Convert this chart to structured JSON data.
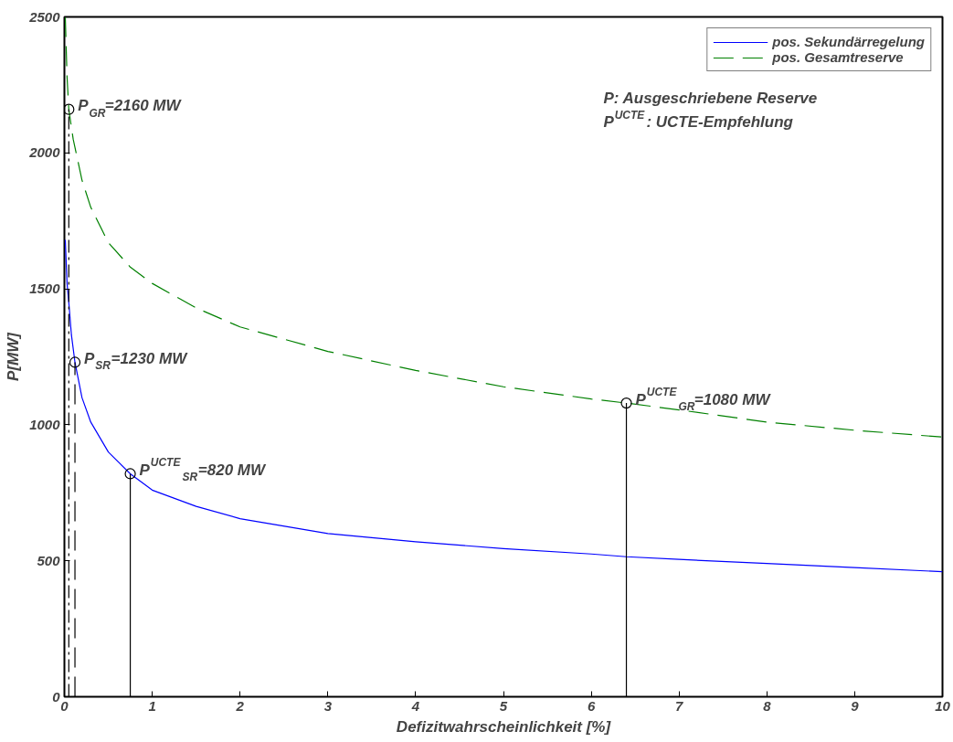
{
  "chart_data": {
    "type": "line",
    "xlabel": "Defizitwahrscheinlichkeit [%]",
    "ylabel": "P[MW]",
    "xlim": [
      0,
      10
    ],
    "ylim": [
      0,
      2500
    ],
    "xticks": [
      0,
      1,
      2,
      3,
      4,
      5,
      6,
      7,
      8,
      9,
      10
    ],
    "yticks": [
      0,
      500,
      1000,
      1500,
      2000,
      2500
    ],
    "grid": false,
    "legend": "top right",
    "series": [
      {
        "name": "pos. Sekundärregelung",
        "color": "#0000ff",
        "line_style": "solid",
        "x": [
          0.01,
          0.03,
          0.05,
          0.08,
          0.12,
          0.2,
          0.3,
          0.5,
          0.75,
          1,
          1.5,
          2,
          3,
          4,
          5,
          6,
          6.4,
          7,
          8,
          9,
          10
        ],
        "values": [
          1680,
          1520,
          1450,
          1330,
          1230,
          1100,
          1010,
          900,
          820,
          760,
          700,
          655,
          600,
          570,
          545,
          525,
          515,
          505,
          490,
          475,
          460
        ]
      },
      {
        "name": "pos. Gesamtreserve",
        "color": "#008000",
        "line_style": "dashed",
        "x": [
          0.01,
          0.03,
          0.05,
          0.1,
          0.2,
          0.3,
          0.5,
          0.75,
          1,
          1.5,
          2,
          3,
          4,
          5,
          6,
          6.4,
          7,
          8,
          9,
          10
        ],
        "values": [
          2500,
          2280,
          2160,
          2050,
          1900,
          1800,
          1670,
          1580,
          1520,
          1430,
          1360,
          1270,
          1200,
          1140,
          1095,
          1080,
          1055,
          1010,
          980,
          955
        ]
      },
      {
        "color": "#000000",
        "line_style": "dashdot",
        "x": [
          0.05,
          0.05
        ],
        "values": [
          0,
          2160
        ]
      },
      {
        "color": "#000000",
        "line_style": "dashed",
        "x": [
          0.12,
          0.12
        ],
        "values": [
          0,
          1230
        ]
      },
      {
        "color": "#000000",
        "line_style": "solid",
        "x": [
          0.75,
          0.75
        ],
        "values": [
          0,
          820
        ]
      },
      {
        "color": "#000000",
        "line_style": "solid",
        "x": [
          6.4,
          6.4
        ],
        "values": [
          0,
          1080
        ]
      },
      {
        "type": "scatter",
        "marker": "circle",
        "color": "#000000",
        "x": [
          0.05,
          0.12,
          0.75,
          6.4
        ],
        "values": [
          2160,
          1230,
          820,
          1080
        ]
      }
    ],
    "annotations": [
      {
        "text": "P$_{GR}$=2160 MW",
        "x": 0.05,
        "y": 2160
      },
      {
        "text": "P$_{SR}$=1230 MW",
        "x": 0.12,
        "y": 1230
      },
      {
        "text": "P$^{UCTE}$$_{SR}$=820 MW",
        "x": 0.75,
        "y": 820
      },
      {
        "text": "P$^{UCTE}$$_{GR}$=1080 MW",
        "x": 6.4,
        "y": 1080
      },
      "P: Ausgeschriebene Reserve",
      "P$^{UCTE}$: UCTE-Empfehlung"
    ]
  }
}
